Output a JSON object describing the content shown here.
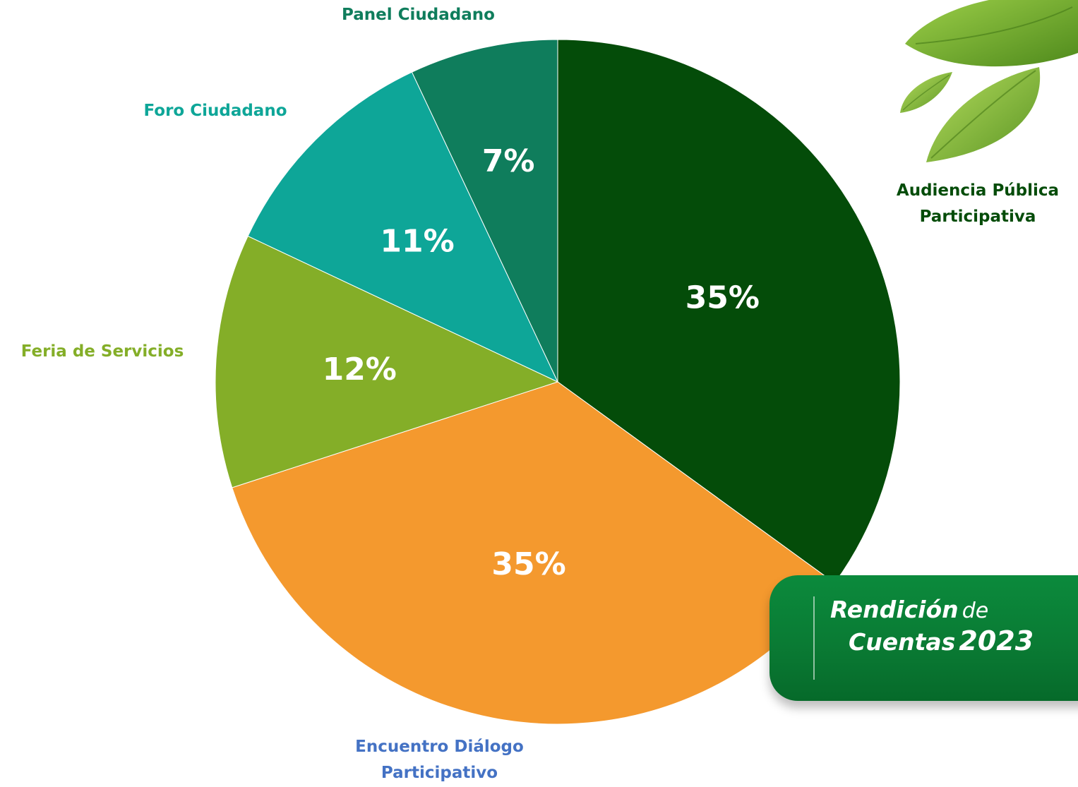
{
  "chart_data": {
    "type": "pie",
    "slices": [
      {
        "label": "Audiencia Pública Participativa",
        "value": 35,
        "display": "35%",
        "color": "#044c09"
      },
      {
        "label": "Encuentro Diálogo Participativo",
        "value": 35,
        "display": "35%",
        "color": "#f4992e"
      },
      {
        "label": "Feria de Servicios",
        "value": 12,
        "display": "12%",
        "color": "#84ae28"
      },
      {
        "label": "Foro Ciudadano",
        "value": 11,
        "display": "11%",
        "color": "#0ea698"
      },
      {
        "label": "Panel Ciudadano",
        "value": 7,
        "display": "7%",
        "color": "#0f7d5c"
      }
    ],
    "label_colors": {
      "Panel Ciudadano": "#0f7d5c",
      "Foro Ciudadano": "#0ea698",
      "Feria de Servicios": "#84ae28",
      "Audiencia Pública Participativa": "#044c09",
      "Encuentro Diálogo Participativo": "#4472c4"
    }
  },
  "labels": {
    "panel": "Panel Ciudadano",
    "foro": "Foro Ciudadano",
    "feria": "Feria de Servicios",
    "audiencia_line1": "Audiencia Pública",
    "audiencia_line2": "Participativa",
    "encuentro_line1": "Encuentro Diálogo",
    "encuentro_line2": "Participativo"
  },
  "badge": {
    "word1": "Rendición",
    "word2": "de",
    "word3": "Cuentas",
    "year": "2023",
    "bg_color": "#0a7b34"
  },
  "decoration": {
    "icon": "basil-leaves-icon"
  }
}
